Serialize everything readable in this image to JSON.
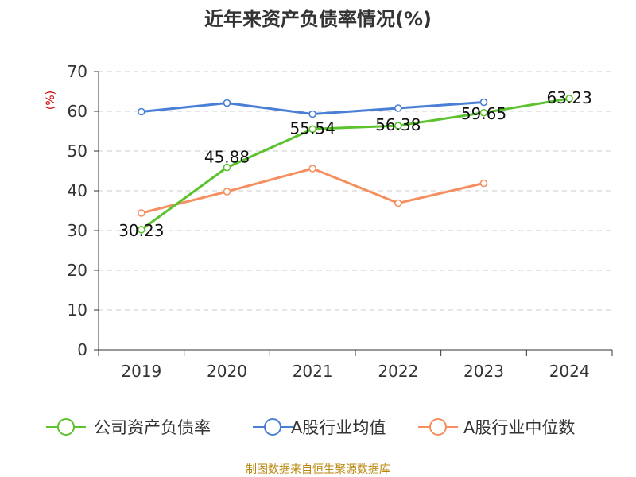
{
  "chart_data": {
    "type": "line",
    "title": "近年来资产负债率情况(%)",
    "ylabel": "(%)",
    "xlabel": "",
    "categories": [
      "2019",
      "2020",
      "2021",
      "2022",
      "2023",
      "2024"
    ],
    "ylim": [
      0,
      70
    ],
    "yticks": [
      "0",
      "10",
      "20",
      "30",
      "40",
      "50",
      "60",
      "70"
    ],
    "grid": "horizontal dashed",
    "legend_position": "bottom",
    "series": [
      {
        "name": "公司资产负债率",
        "color": "#5cc22e",
        "values": [
          30.23,
          45.88,
          55.54,
          56.38,
          59.65,
          63.23
        ],
        "labels": [
          "30.23",
          "45.88",
          "55.54",
          "56.38",
          "59.65",
          "63.23"
        ]
      },
      {
        "name": "A股行业均值",
        "color": "#4a7fd6",
        "values": [
          59.9,
          62.1,
          59.3,
          60.8,
          62.3,
          null
        ],
        "labels": []
      },
      {
        "name": "A股行业中位数",
        "color": "#f58f5f",
        "values": [
          34.4,
          39.8,
          45.6,
          36.9,
          41.9,
          null
        ],
        "labels": []
      }
    ]
  },
  "source": "制图数据来自恒生聚源数据库",
  "colors": {
    "axis": "#333333",
    "grid": "#cccccc",
    "unit_label": "#cc0000",
    "source": "#b8860b"
  }
}
